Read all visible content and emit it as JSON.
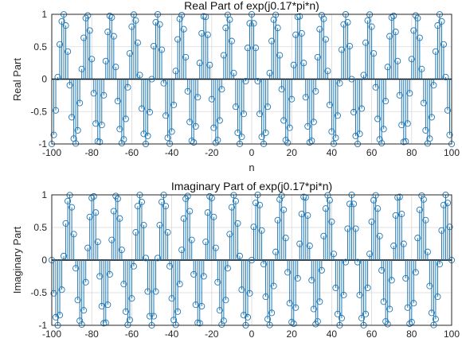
{
  "colors": {
    "stem": "#1f77b4",
    "grid": "#d9d9d9",
    "axis": "#262626",
    "zero": "#000000"
  },
  "chart_data": [
    {
      "type": "stem",
      "title": "Real Part of exp(j0.17*pi*n)",
      "xlabel": "n",
      "ylabel": "Real Part",
      "xlim": [
        -100,
        100
      ],
      "ylim": [
        -1,
        1
      ],
      "grid": true,
      "signal": {
        "function": "cos",
        "omega_over_pi": 0.17,
        "n_start": -100,
        "n_end": 100,
        "n_step": 1
      },
      "xticks": [
        "-100",
        "-80",
        "-60",
        "-40",
        "-20",
        "0",
        "20",
        "40",
        "60",
        "80",
        "100"
      ],
      "yticks": [
        "-1",
        "-0.5",
        "0",
        "0.5",
        "1"
      ]
    },
    {
      "type": "stem",
      "title": "Imaginary Part of exp(j0.17*pi*n)",
      "xlabel": "",
      "ylabel": "Imaginary Part",
      "xlim": [
        -100,
        100
      ],
      "ylim": [
        -1,
        1
      ],
      "grid": true,
      "signal": {
        "function": "sin",
        "omega_over_pi": 0.17,
        "n_start": -100,
        "n_end": 100,
        "n_step": 1
      },
      "xticks": [
        "-100",
        "-80",
        "-60",
        "-40",
        "-20",
        "0",
        "20",
        "40",
        "60",
        "80",
        "100"
      ],
      "yticks": [
        "-1",
        "-0.5",
        "0",
        "0.5",
        "1"
      ]
    }
  ]
}
